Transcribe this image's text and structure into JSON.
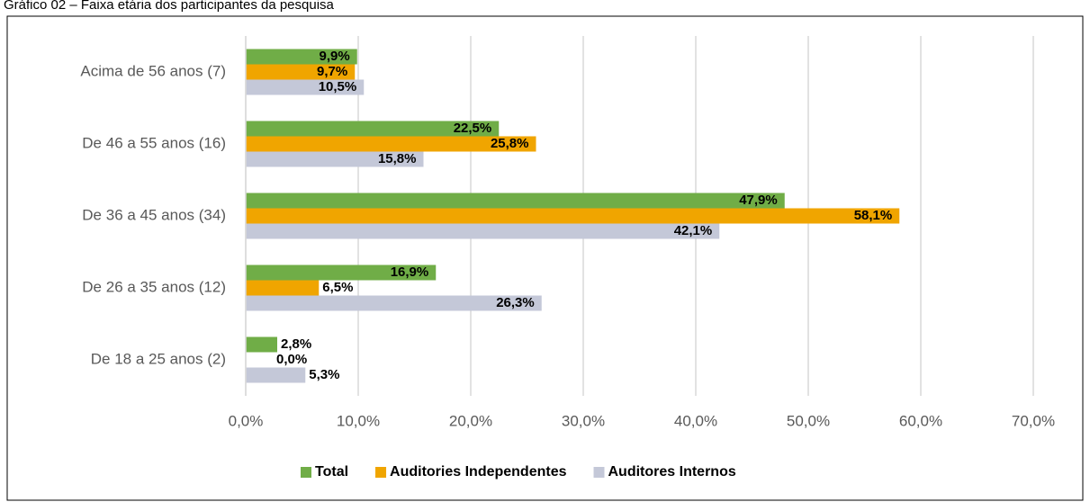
{
  "chart_data": {
    "type": "bar",
    "orientation": "horizontal",
    "title": "Gráfico 02 – Faixa etária dos participantes da pesquisa",
    "categories": [
      "Acima de 56 anos (7)",
      "De 46 a 55 anos (16)",
      "De 36 a 45 anos (34)",
      "De 26 a 35 anos (12)",
      "De 18 a 25 anos (2)"
    ],
    "series": [
      {
        "name": "Total",
        "color": "#70ad47",
        "values": [
          9.9,
          22.5,
          47.9,
          16.9,
          2.8
        ],
        "value_labels": [
          "9,9%",
          "22,5%",
          "47,9%",
          "16,9%",
          "2,8%"
        ]
      },
      {
        "name": "Auditories Independentes",
        "color": "#f0a500",
        "values": [
          9.7,
          25.8,
          58.1,
          6.5,
          0.0
        ],
        "value_labels": [
          "9,7%",
          "25,8%",
          "58,1%",
          "6,5%",
          "0,0%"
        ]
      },
      {
        "name": "Auditores Internos",
        "color": "#c4c8d8",
        "values": [
          10.5,
          15.8,
          42.1,
          26.3,
          5.3
        ],
        "value_labels": [
          "10,5%",
          "15,8%",
          "42,1%",
          "26,3%",
          "5,3%"
        ]
      }
    ],
    "xlim": [
      0,
      70
    ],
    "xticks": [
      {
        "value": 0,
        "label": "0,0%"
      },
      {
        "value": 10,
        "label": "10,0%"
      },
      {
        "value": 20,
        "label": "20,0%"
      },
      {
        "value": 30,
        "label": "30,0%"
      },
      {
        "value": 40,
        "label": "40,0%"
      },
      {
        "value": 50,
        "label": "50,0%"
      },
      {
        "value": 60,
        "label": "60,0%"
      },
      {
        "value": 70,
        "label": "70,0%"
      }
    ],
    "grid": true,
    "legend": "bottom"
  }
}
